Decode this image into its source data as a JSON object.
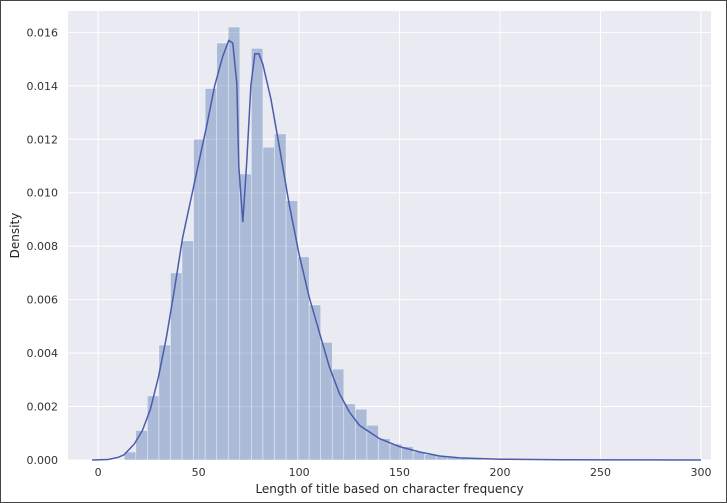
{
  "chart_data": {
    "type": "histogram",
    "title": "",
    "xlabel": "Length of title based on character frequency",
    "ylabel": "Density",
    "xlim": [
      -15,
      305
    ],
    "ylim": [
      0,
      0.0168
    ],
    "xticks": [
      0,
      50,
      100,
      150,
      200,
      250,
      300
    ],
    "xtick_labels": [
      "0",
      "50",
      "100",
      "150",
      "200",
      "250",
      "300"
    ],
    "yticks": [
      0.0,
      0.002,
      0.004,
      0.006,
      0.008,
      0.01,
      0.012,
      0.014,
      0.016
    ],
    "ytick_labels": [
      "0.000",
      "0.002",
      "0.004",
      "0.006",
      "0.008",
      "0.010",
      "0.012",
      "0.014",
      "0.016"
    ],
    "grid": true,
    "bar_color": "#4c72b0",
    "line_color": "#4c5cad",
    "background_color": "#eaeaf2",
    "bin_width": 5.75,
    "bins": [
      {
        "x0": 13.0,
        "density": 0.0003
      },
      {
        "x0": 18.75,
        "density": 0.0011
      },
      {
        "x0": 24.5,
        "density": 0.0024
      },
      {
        "x0": 30.25,
        "density": 0.0043
      },
      {
        "x0": 36.0,
        "density": 0.007
      },
      {
        "x0": 41.75,
        "density": 0.0082
      },
      {
        "x0": 47.5,
        "density": 0.012
      },
      {
        "x0": 53.25,
        "density": 0.0139
      },
      {
        "x0": 59.0,
        "density": 0.0156
      },
      {
        "x0": 64.75,
        "density": 0.0162
      },
      {
        "x0": 70.5,
        "density": 0.0107
      },
      {
        "x0": 76.25,
        "density": 0.0154
      },
      {
        "x0": 82.0,
        "density": 0.0117
      },
      {
        "x0": 87.75,
        "density": 0.0122
      },
      {
        "x0": 93.5,
        "density": 0.0097
      },
      {
        "x0": 99.25,
        "density": 0.0076
      },
      {
        "x0": 105.0,
        "density": 0.0058
      },
      {
        "x0": 110.75,
        "density": 0.0044
      },
      {
        "x0": 116.5,
        "density": 0.0034
      },
      {
        "x0": 122.25,
        "density": 0.0021
      },
      {
        "x0": 128.0,
        "density": 0.0019
      },
      {
        "x0": 133.75,
        "density": 0.0013
      },
      {
        "x0": 139.5,
        "density": 0.0008
      },
      {
        "x0": 145.25,
        "density": 0.0006
      },
      {
        "x0": 151.0,
        "density": 0.0005
      },
      {
        "x0": 156.75,
        "density": 0.0003
      },
      {
        "x0": 162.5,
        "density": 0.0002
      },
      {
        "x0": 168.25,
        "density": 0.00015
      },
      {
        "x0": 174.0,
        "density": 0.0001
      },
      {
        "x0": 179.75,
        "density": 7e-05
      },
      {
        "x0": 185.5,
        "density": 5e-05
      }
    ],
    "kde": {
      "x": [
        -3,
        5,
        10,
        13,
        18,
        22,
        26,
        30,
        34,
        38,
        42,
        46,
        50,
        54,
        58,
        62,
        65,
        67,
        69,
        70,
        72,
        74,
        76,
        78,
        80,
        82,
        86,
        90,
        95,
        100,
        105,
        110,
        115,
        120,
        125,
        130,
        140,
        150,
        160,
        170,
        180,
        200,
        230,
        260,
        300
      ],
      "y": [
        0.0,
        2e-05,
        0.0001,
        0.0002,
        0.0006,
        0.0011,
        0.0019,
        0.0031,
        0.0046,
        0.0064,
        0.0083,
        0.0097,
        0.0111,
        0.0125,
        0.014,
        0.0151,
        0.0157,
        0.0156,
        0.0141,
        0.011,
        0.0089,
        0.0112,
        0.014,
        0.0152,
        0.0152,
        0.0148,
        0.0135,
        0.0118,
        0.0096,
        0.0077,
        0.0061,
        0.0048,
        0.0035,
        0.0025,
        0.0018,
        0.0013,
        0.0008,
        0.0005,
        0.0003,
        0.00015,
        8e-05,
        3e-05,
        1e-05,
        5e-06,
        0.0
      ]
    }
  }
}
